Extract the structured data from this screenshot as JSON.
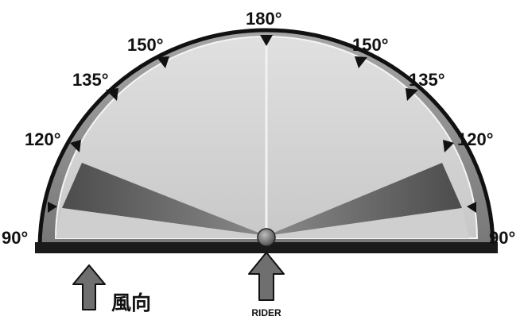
{
  "angle_labels": {
    "top": "180°",
    "left_150": "150°",
    "right_150": "150°",
    "left_135": "135°",
    "right_135": "135°",
    "left_120": "120°",
    "right_120": "120°",
    "left_90": "90°",
    "right_90": "90°"
  },
  "wind_label": "風向",
  "rider_label": "RIDER",
  "colors": {
    "outer_rim": "#8d8d8d",
    "inner_face": "#d6d6d6",
    "dark_wedge": "#5a5a5a",
    "base_bar": "#1a1a1a",
    "outline": "#111111",
    "arrow": "#6f6f6f",
    "center_line": "#f2f2f2"
  },
  "icons": {
    "tick_marker": "triangle-marker",
    "arrow": "up-arrow"
  }
}
